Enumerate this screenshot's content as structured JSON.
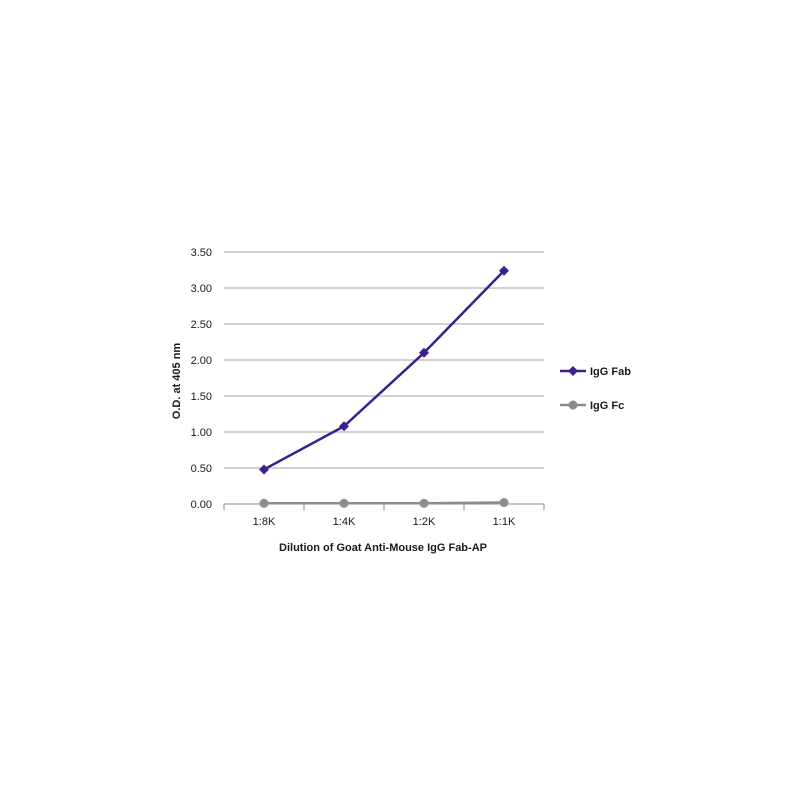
{
  "chart_data": {
    "type": "line",
    "title": "",
    "xlabel": "Dilution of Goat Anti-Mouse IgG Fab-AP",
    "ylabel": "O.D. at 405 nm",
    "categories": [
      "1:8K",
      "1:4K",
      "1:2K",
      "1:1K"
    ],
    "ylim": [
      0,
      3.5
    ],
    "yticks": [
      0,
      0.5,
      1.0,
      1.5,
      2.0,
      2.5,
      3.0,
      3.5
    ],
    "ytick_labels": [
      "0.00",
      "0.50",
      "1.00",
      "1.50",
      "2.00",
      "2.50",
      "3.00",
      "3.50"
    ],
    "grid": true,
    "legend_position": "right",
    "series": [
      {
        "name": "IgG Fab",
        "values": [
          0.48,
          1.08,
          2.1,
          3.24
        ],
        "color": "#3d1f8c",
        "marker": "diamond"
      },
      {
        "name": "IgG Fc",
        "values": [
          0.01,
          0.01,
          0.01,
          0.02
        ],
        "color": "#8c8c8c",
        "marker": "circle"
      }
    ]
  }
}
